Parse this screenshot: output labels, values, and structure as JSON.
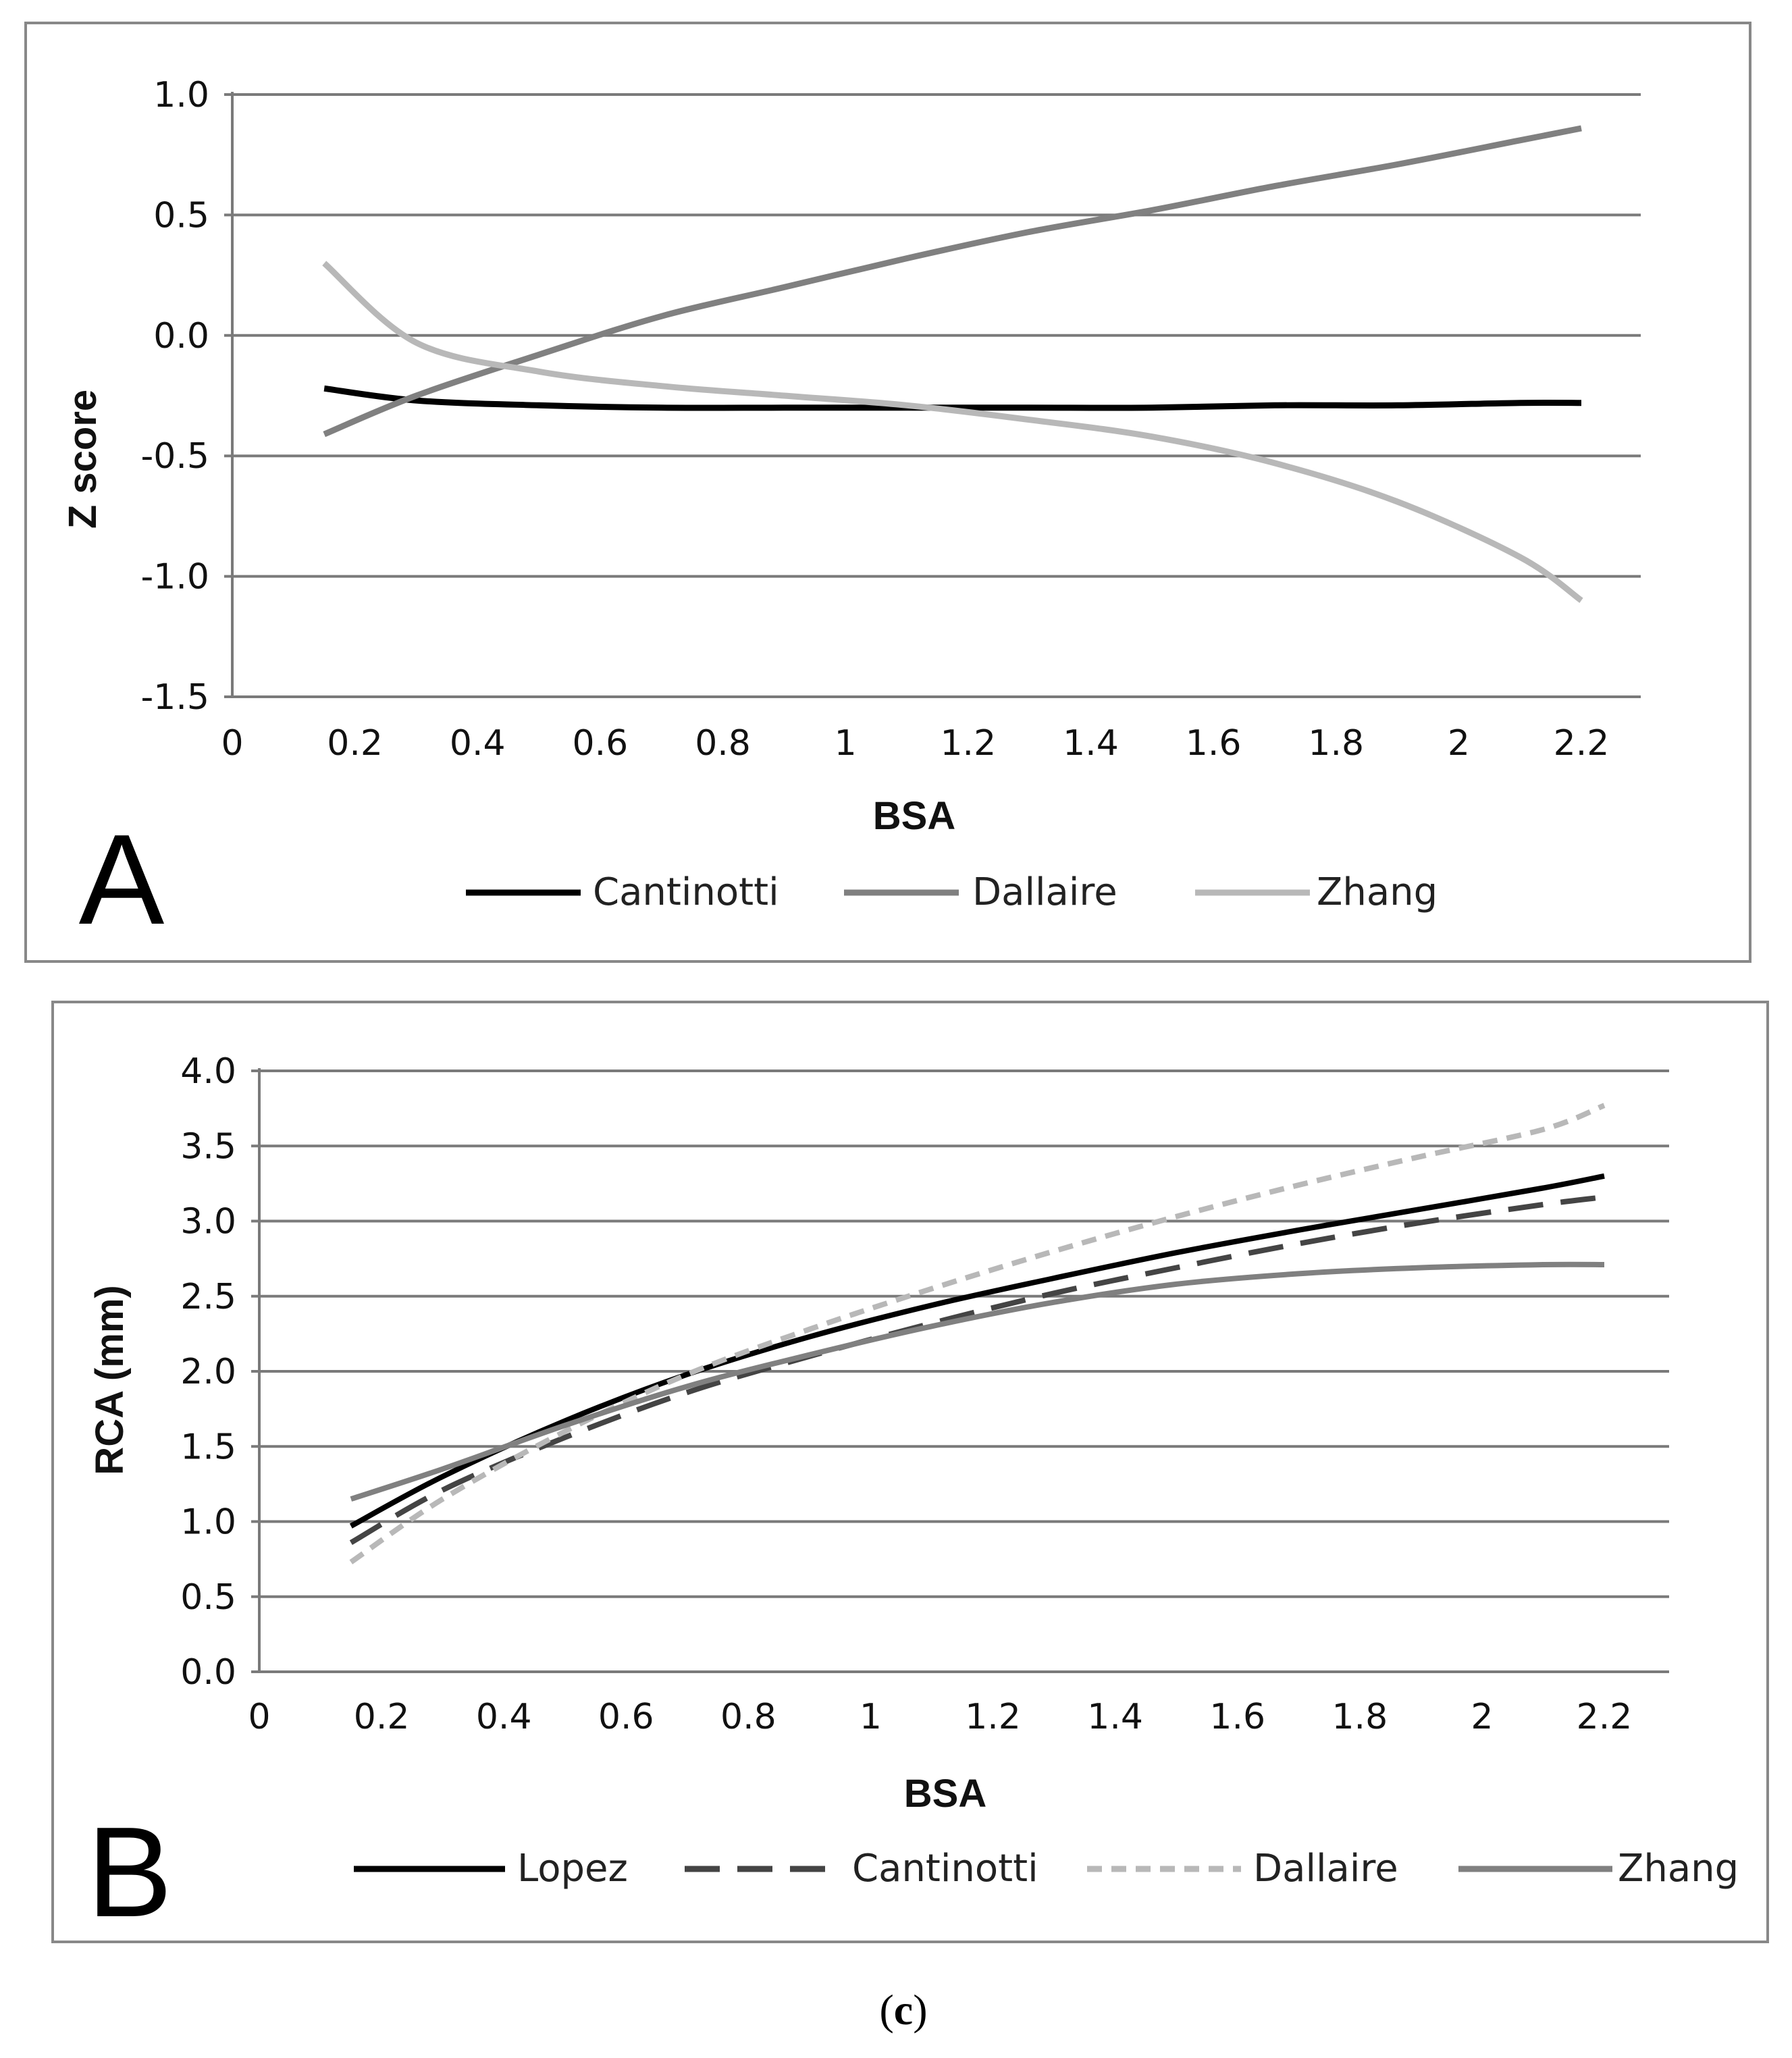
{
  "caption": {
    "open": "(",
    "letter": "c",
    "close": ")"
  },
  "colors": {
    "black": "#000000",
    "dark": "#444444",
    "mid": "#808080",
    "light": "#b8b8b8",
    "grid": "#7a7a7a",
    "frame": "#888888"
  },
  "chart_data": [
    {
      "panel": "A",
      "type": "line",
      "title": "",
      "xlabel": "BSA",
      "ylabel": "Z score",
      "xlim": [
        0,
        2.2
      ],
      "ylim": [
        -1.5,
        1.0
      ],
      "xticks": [
        "0",
        "0.2",
        "0.4",
        "0.6",
        "0.8",
        "1",
        "1.2",
        "1.4",
        "1.6",
        "1.8",
        "2",
        "2.2"
      ],
      "yticks": [
        "1.0",
        "0.5",
        "0.0",
        "-0.5",
        "-1.0",
        "-1.5"
      ],
      "grid": "horizontal",
      "legend": "bottom",
      "x": [
        0.15,
        0.3,
        0.5,
        0.7,
        0.9,
        1.1,
        1.3,
        1.5,
        1.7,
        1.9,
        2.1,
        2.2
      ],
      "series": [
        {
          "name": "Cantinotti",
          "color": "#000000",
          "dash": "solid",
          "values": [
            -0.22,
            -0.27,
            -0.29,
            -0.3,
            -0.3,
            -0.3,
            -0.3,
            -0.3,
            -0.29,
            -0.29,
            -0.28,
            -0.28
          ]
        },
        {
          "name": "Dallaire",
          "color": "#808080",
          "dash": "solid",
          "values": [
            -0.41,
            -0.25,
            -0.08,
            0.08,
            0.2,
            0.32,
            0.43,
            0.52,
            0.62,
            0.71,
            0.81,
            0.86
          ]
        },
        {
          "name": "Zhang",
          "color": "#b8b8b8",
          "dash": "solid",
          "values": [
            0.3,
            -0.03,
            -0.15,
            -0.21,
            -0.25,
            -0.29,
            -0.35,
            -0.42,
            -0.53,
            -0.69,
            -0.92,
            -1.1
          ]
        }
      ]
    },
    {
      "panel": "B",
      "type": "line",
      "title": "",
      "xlabel": "BSA",
      "ylabel": "RCA (mm)",
      "xlim": [
        0,
        2.2
      ],
      "ylim": [
        0.0,
        4.0
      ],
      "xticks": [
        "0",
        "0.2",
        "0.4",
        "0.6",
        "0.8",
        "1",
        "1.2",
        "1.4",
        "1.6",
        "1.8",
        "2",
        "2.2"
      ],
      "yticks": [
        "4.0",
        "3.5",
        "3.0",
        "2.5",
        "2.0",
        "1.5",
        "1.0",
        "0.5",
        "0.0"
      ],
      "grid": "horizontal",
      "legend": "bottom",
      "x": [
        0.15,
        0.3,
        0.5,
        0.7,
        0.9,
        1.1,
        1.3,
        1.5,
        1.7,
        1.9,
        2.1,
        2.2
      ],
      "series": [
        {
          "name": "Lopez",
          "color": "#000000",
          "dash": "solid",
          "values": [
            0.97,
            1.3,
            1.67,
            1.98,
            2.23,
            2.44,
            2.62,
            2.79,
            2.94,
            3.08,
            3.22,
            3.3
          ]
        },
        {
          "name": "Cantinotti",
          "color": "#444444",
          "dash": "long-dash",
          "values": [
            0.86,
            1.21,
            1.56,
            1.86,
            2.1,
            2.32,
            2.52,
            2.69,
            2.85,
            2.99,
            3.11,
            3.16
          ]
        },
        {
          "name": "Dallaire",
          "color": "#b8b8b8",
          "dash": "short-dash",
          "values": [
            0.73,
            1.15,
            1.6,
            1.98,
            2.28,
            2.55,
            2.8,
            3.03,
            3.24,
            3.43,
            3.61,
            3.77
          ]
        },
        {
          "name": "Zhang",
          "color": "#808080",
          "dash": "solid",
          "values": [
            1.15,
            1.35,
            1.64,
            1.9,
            2.11,
            2.3,
            2.46,
            2.58,
            2.65,
            2.69,
            2.71,
            2.71
          ]
        }
      ]
    }
  ]
}
